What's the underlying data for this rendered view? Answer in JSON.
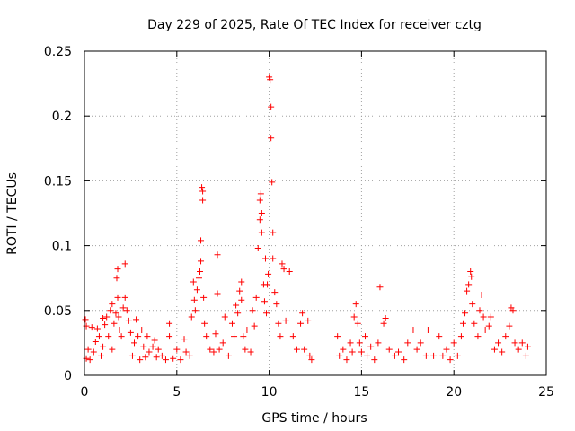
{
  "chart_data": {
    "type": "scatter",
    "title": "Day 229 of 2025, Rate Of TEC Index for receiver cztg",
    "xlabel": "GPS time / hours",
    "ylabel": "ROTI / TECUs",
    "xlim": [
      0,
      25
    ],
    "ylim": [
      0,
      0.25
    ],
    "xticks": [
      0,
      5,
      10,
      15,
      20,
      25
    ],
    "xtick_labels": [
      "0",
      "5",
      "10",
      "15",
      "20",
      "25"
    ],
    "yticks": [
      0,
      0.05,
      0.1,
      0.15,
      0.2,
      0.25
    ],
    "ytick_labels": [
      "0",
      "0.05",
      "0.1",
      "0.15",
      "0.2",
      "0.25"
    ],
    "grid": true,
    "marker": "plus",
    "colors": {
      "points": "#ff0000",
      "grid": "#a0a0a0",
      "axes": "#000000"
    },
    "series": [
      {
        "values": [
          [
            0.05,
            0.043
          ],
          [
            0.1,
            0.038
          ],
          [
            0.1,
            0.013
          ],
          [
            0.2,
            0.02
          ],
          [
            0.3,
            0.012
          ],
          [
            0.4,
            0.037
          ],
          [
            0.5,
            0.018
          ],
          [
            0.6,
            0.026
          ],
          [
            0.7,
            0.036
          ],
          [
            0.8,
            0.03
          ],
          [
            0.9,
            0.015
          ],
          [
            1.0,
            0.044
          ],
          [
            1.0,
            0.022
          ],
          [
            1.1,
            0.039
          ],
          [
            1.2,
            0.045
          ],
          [
            1.3,
            0.03
          ],
          [
            1.4,
            0.05
          ],
          [
            1.5,
            0.055
          ],
          [
            1.5,
            0.02
          ],
          [
            1.6,
            0.04
          ],
          [
            1.7,
            0.048
          ],
          [
            1.75,
            0.075
          ],
          [
            1.8,
            0.082
          ],
          [
            1.8,
            0.06
          ],
          [
            1.85,
            0.045
          ],
          [
            1.9,
            0.035
          ],
          [
            2.0,
            0.03
          ],
          [
            2.1,
            0.052
          ],
          [
            2.2,
            0.086
          ],
          [
            2.2,
            0.06
          ],
          [
            2.3,
            0.05
          ],
          [
            2.4,
            0.042
          ],
          [
            2.5,
            0.033
          ],
          [
            2.6,
            0.015
          ],
          [
            2.7,
            0.025
          ],
          [
            2.8,
            0.043
          ],
          [
            2.9,
            0.03
          ],
          [
            3.0,
            0.012
          ],
          [
            3.1,
            0.035
          ],
          [
            3.2,
            0.022
          ],
          [
            3.3,
            0.014
          ],
          [
            3.4,
            0.03
          ],
          [
            3.5,
            0.018
          ],
          [
            3.7,
            0.022
          ],
          [
            3.8,
            0.027
          ],
          [
            3.9,
            0.014
          ],
          [
            4.0,
            0.02
          ],
          [
            4.2,
            0.015
          ],
          [
            4.4,
            0.012
          ],
          [
            4.6,
            0.03
          ],
          [
            4.6,
            0.04
          ],
          [
            4.8,
            0.013
          ],
          [
            5.0,
            0.02
          ],
          [
            5.2,
            0.012
          ],
          [
            5.4,
            0.028
          ],
          [
            5.5,
            0.018
          ],
          [
            5.7,
            0.015
          ],
          [
            5.8,
            0.045
          ],
          [
            5.9,
            0.072
          ],
          [
            5.95,
            0.058
          ],
          [
            6.0,
            0.05
          ],
          [
            6.1,
            0.066
          ],
          [
            6.2,
            0.075
          ],
          [
            6.25,
            0.08
          ],
          [
            6.3,
            0.088
          ],
          [
            6.3,
            0.104
          ],
          [
            6.35,
            0.145
          ],
          [
            6.4,
            0.142
          ],
          [
            6.4,
            0.135
          ],
          [
            6.45,
            0.06
          ],
          [
            6.5,
            0.04
          ],
          [
            6.6,
            0.03
          ],
          [
            6.8,
            0.02
          ],
          [
            7.0,
            0.018
          ],
          [
            7.1,
            0.032
          ],
          [
            7.2,
            0.093
          ],
          [
            7.2,
            0.063
          ],
          [
            7.3,
            0.02
          ],
          [
            7.5,
            0.025
          ],
          [
            7.6,
            0.045
          ],
          [
            7.8,
            0.015
          ],
          [
            8.0,
            0.04
          ],
          [
            8.1,
            0.03
          ],
          [
            8.2,
            0.054
          ],
          [
            8.3,
            0.048
          ],
          [
            8.4,
            0.065
          ],
          [
            8.5,
            0.072
          ],
          [
            8.5,
            0.058
          ],
          [
            8.6,
            0.03
          ],
          [
            8.7,
            0.02
          ],
          [
            8.8,
            0.035
          ],
          [
            9.0,
            0.018
          ],
          [
            9.1,
            0.05
          ],
          [
            9.2,
            0.038
          ],
          [
            9.3,
            0.06
          ],
          [
            9.4,
            0.098
          ],
          [
            9.5,
            0.12
          ],
          [
            9.5,
            0.135
          ],
          [
            9.55,
            0.14
          ],
          [
            9.6,
            0.125
          ],
          [
            9.6,
            0.11
          ],
          [
            9.7,
            0.07
          ],
          [
            9.75,
            0.057
          ],
          [
            9.8,
            0.09
          ],
          [
            9.85,
            0.048
          ],
          [
            9.9,
            0.07
          ],
          [
            9.95,
            0.078
          ],
          [
            10.0,
            0.23
          ],
          [
            10.05,
            0.228
          ],
          [
            10.1,
            0.207
          ],
          [
            10.1,
            0.183
          ],
          [
            10.15,
            0.149
          ],
          [
            10.2,
            0.11
          ],
          [
            10.2,
            0.09
          ],
          [
            10.3,
            0.064
          ],
          [
            10.4,
            0.055
          ],
          [
            10.5,
            0.04
          ],
          [
            10.6,
            0.03
          ],
          [
            10.7,
            0.086
          ],
          [
            10.8,
            0.082
          ],
          [
            10.9,
            0.042
          ],
          [
            11.1,
            0.08
          ],
          [
            11.3,
            0.03
          ],
          [
            11.5,
            0.02
          ],
          [
            11.7,
            0.04
          ],
          [
            11.8,
            0.048
          ],
          [
            11.9,
            0.02
          ],
          [
            12.1,
            0.042
          ],
          [
            12.2,
            0.015
          ],
          [
            12.3,
            0.012
          ],
          [
            13.7,
            0.03
          ],
          [
            13.8,
            0.015
          ],
          [
            14.0,
            0.02
          ],
          [
            14.2,
            0.012
          ],
          [
            14.4,
            0.025
          ],
          [
            14.5,
            0.018
          ],
          [
            14.6,
            0.045
          ],
          [
            14.7,
            0.055
          ],
          [
            14.8,
            0.04
          ],
          [
            14.9,
            0.025
          ],
          [
            15.0,
            0.018
          ],
          [
            15.2,
            0.03
          ],
          [
            15.3,
            0.015
          ],
          [
            15.5,
            0.022
          ],
          [
            15.7,
            0.012
          ],
          [
            15.9,
            0.025
          ],
          [
            16.0,
            0.068
          ],
          [
            16.2,
            0.04
          ],
          [
            16.3,
            0.044
          ],
          [
            16.5,
            0.02
          ],
          [
            16.8,
            0.015
          ],
          [
            17.0,
            0.018
          ],
          [
            17.3,
            0.012
          ],
          [
            17.5,
            0.025
          ],
          [
            17.8,
            0.035
          ],
          [
            18.0,
            0.02
          ],
          [
            18.2,
            0.025
          ],
          [
            18.5,
            0.015
          ],
          [
            18.6,
            0.035
          ],
          [
            18.9,
            0.015
          ],
          [
            19.2,
            0.03
          ],
          [
            19.4,
            0.015
          ],
          [
            19.6,
            0.02
          ],
          [
            19.8,
            0.012
          ],
          [
            20.0,
            0.025
          ],
          [
            20.2,
            0.015
          ],
          [
            20.4,
            0.03
          ],
          [
            20.5,
            0.04
          ],
          [
            20.6,
            0.048
          ],
          [
            20.7,
            0.065
          ],
          [
            20.8,
            0.07
          ],
          [
            20.9,
            0.08
          ],
          [
            20.95,
            0.076
          ],
          [
            21.0,
            0.055
          ],
          [
            21.1,
            0.04
          ],
          [
            21.3,
            0.03
          ],
          [
            21.4,
            0.05
          ],
          [
            21.5,
            0.062
          ],
          [
            21.6,
            0.045
          ],
          [
            21.7,
            0.035
          ],
          [
            21.9,
            0.038
          ],
          [
            22.0,
            0.045
          ],
          [
            22.2,
            0.02
          ],
          [
            22.4,
            0.025
          ],
          [
            22.6,
            0.018
          ],
          [
            22.8,
            0.03
          ],
          [
            23.0,
            0.038
          ],
          [
            23.1,
            0.052
          ],
          [
            23.2,
            0.05
          ],
          [
            23.3,
            0.025
          ],
          [
            23.5,
            0.02
          ],
          [
            23.7,
            0.025
          ],
          [
            23.9,
            0.015
          ],
          [
            24.0,
            0.022
          ]
        ]
      }
    ]
  }
}
